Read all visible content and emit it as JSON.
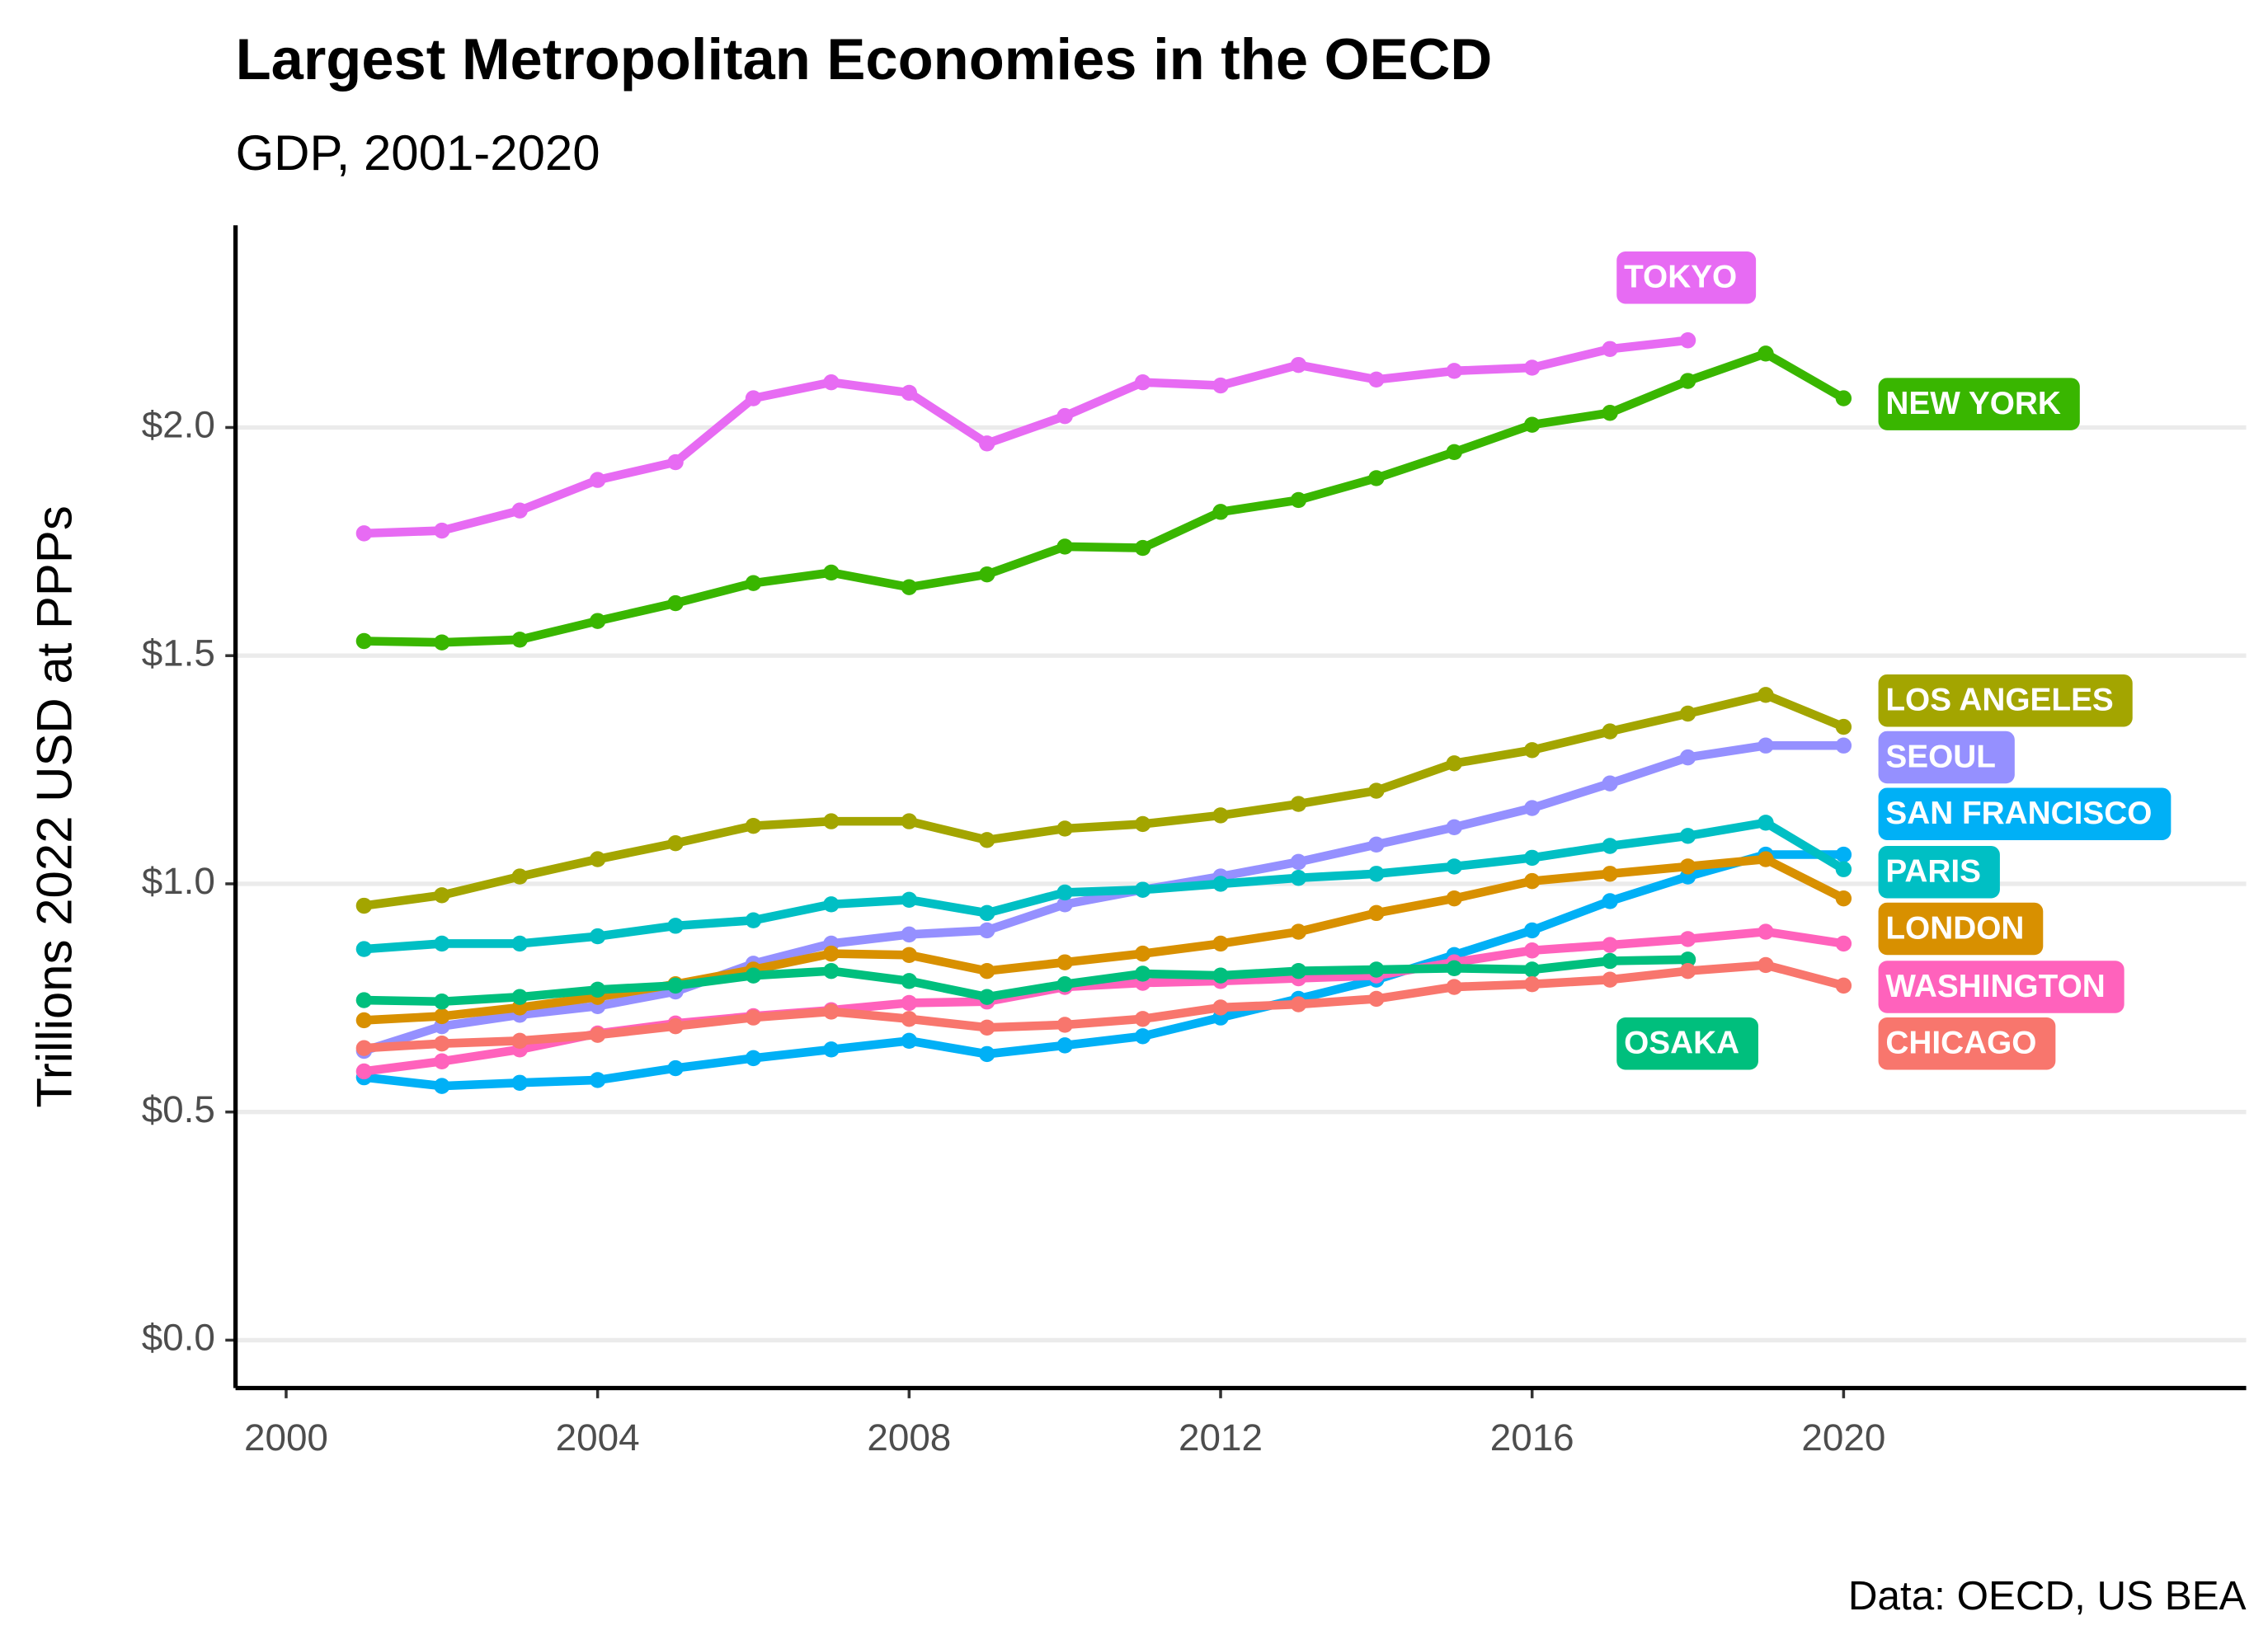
{
  "chart_data": {
    "type": "line",
    "title": "Largest Metropolitan Economies in the OECD",
    "subtitle": "GDP, 2001-2020",
    "y_label": "Trillions 2022 USD at PPPs",
    "caption": "Data: OECD, US BEA",
    "x": [
      2001,
      2002,
      2003,
      2004,
      2005,
      2006,
      2007,
      2008,
      2009,
      2010,
      2011,
      2012,
      2013,
      2014,
      2015,
      2016,
      2017,
      2018,
      2019,
      2020
    ],
    "xlim": [
      1999.35,
      2025.17
    ],
    "xticks": [
      2000,
      2004,
      2008,
      2012,
      2016,
      2020
    ],
    "ylim": [
      -0.105,
      2.443
    ],
    "yticks": [
      {
        "value": 0,
        "label": "$0.0"
      },
      {
        "value": 0.5,
        "label": "$0.5"
      },
      {
        "value": 1.0,
        "label": "$1.0"
      },
      {
        "value": 1.5,
        "label": "$1.5"
      },
      {
        "value": 2.0,
        "label": "$2.0"
      }
    ],
    "grid": true,
    "series": [
      {
        "name": "TOKYO",
        "color": "#E76BF3",
        "values": [
          1.768,
          1.774,
          1.818,
          1.885,
          1.924,
          2.064,
          2.099,
          2.076,
          1.965,
          2.025,
          2.099,
          2.092,
          2.137,
          2.105,
          2.124,
          2.131,
          2.172,
          2.191,
          null,
          null
        ]
      },
      {
        "name": "NEW YORK",
        "color": "#39B600",
        "values": [
          1.532,
          1.529,
          1.535,
          1.576,
          1.615,
          1.659,
          1.682,
          1.65,
          1.678,
          1.739,
          1.736,
          1.815,
          1.841,
          1.889,
          1.946,
          2.006,
          2.032,
          2.102,
          2.162,
          2.064
        ]
      },
      {
        "name": "LOS ANGELES",
        "color": "#A3A500",
        "values": [
          0.952,
          0.975,
          1.016,
          1.054,
          1.089,
          1.127,
          1.137,
          1.137,
          1.096,
          1.121,
          1.131,
          1.15,
          1.175,
          1.204,
          1.264,
          1.293,
          1.334,
          1.373,
          1.414,
          1.344
        ]
      },
      {
        "name": "SEOUL",
        "color": "#9590FF",
        "values": [
          0.634,
          0.688,
          0.713,
          0.732,
          0.764,
          0.825,
          0.869,
          0.889,
          0.898,
          0.955,
          0.987,
          1.016,
          1.048,
          1.086,
          1.124,
          1.166,
          1.22,
          1.277,
          1.303,
          1.303
        ]
      },
      {
        "name": "SAN FRANCISCO",
        "color": "#00B0F6",
        "values": [
          0.576,
          0.557,
          0.564,
          0.57,
          0.596,
          0.618,
          0.637,
          0.656,
          0.627,
          0.646,
          0.666,
          0.707,
          0.748,
          0.79,
          0.844,
          0.898,
          0.962,
          1.016,
          1.064,
          1.064
        ]
      },
      {
        "name": "PARIS",
        "color": "#00BFC4",
        "values": [
          0.857,
          0.869,
          0.869,
          0.885,
          0.908,
          0.92,
          0.955,
          0.965,
          0.936,
          0.981,
          0.987,
          1.0,
          1.013,
          1.022,
          1.038,
          1.057,
          1.083,
          1.105,
          1.134,
          1.032
        ]
      },
      {
        "name": "LONDON",
        "color": "#D89000",
        "values": [
          0.701,
          0.71,
          0.729,
          0.752,
          0.78,
          0.812,
          0.847,
          0.844,
          0.809,
          0.828,
          0.847,
          0.869,
          0.895,
          0.936,
          0.968,
          1.006,
          1.022,
          1.038,
          1.054,
          0.968
        ]
      },
      {
        "name": "WASHINGTON",
        "color": "#FF62BC",
        "values": [
          0.589,
          0.611,
          0.637,
          0.672,
          0.694,
          0.71,
          0.723,
          0.739,
          0.742,
          0.774,
          0.783,
          0.787,
          0.793,
          0.799,
          0.828,
          0.854,
          0.866,
          0.879,
          0.895,
          0.869
        ]
      },
      {
        "name": "OSAKA",
        "color": "#00BF7D",
        "values": [
          0.745,
          0.742,
          0.752,
          0.768,
          0.777,
          0.799,
          0.809,
          0.787,
          0.752,
          0.78,
          0.803,
          0.799,
          0.809,
          0.812,
          0.815,
          0.812,
          0.831,
          0.834,
          null,
          null
        ]
      },
      {
        "name": "CHICAGO",
        "color": "#F8766D",
        "values": [
          0.64,
          0.65,
          0.656,
          0.669,
          0.688,
          0.707,
          0.72,
          0.704,
          0.685,
          0.691,
          0.704,
          0.729,
          0.736,
          0.748,
          0.774,
          0.78,
          0.79,
          0.809,
          0.822,
          0.777
        ]
      }
    ]
  }
}
